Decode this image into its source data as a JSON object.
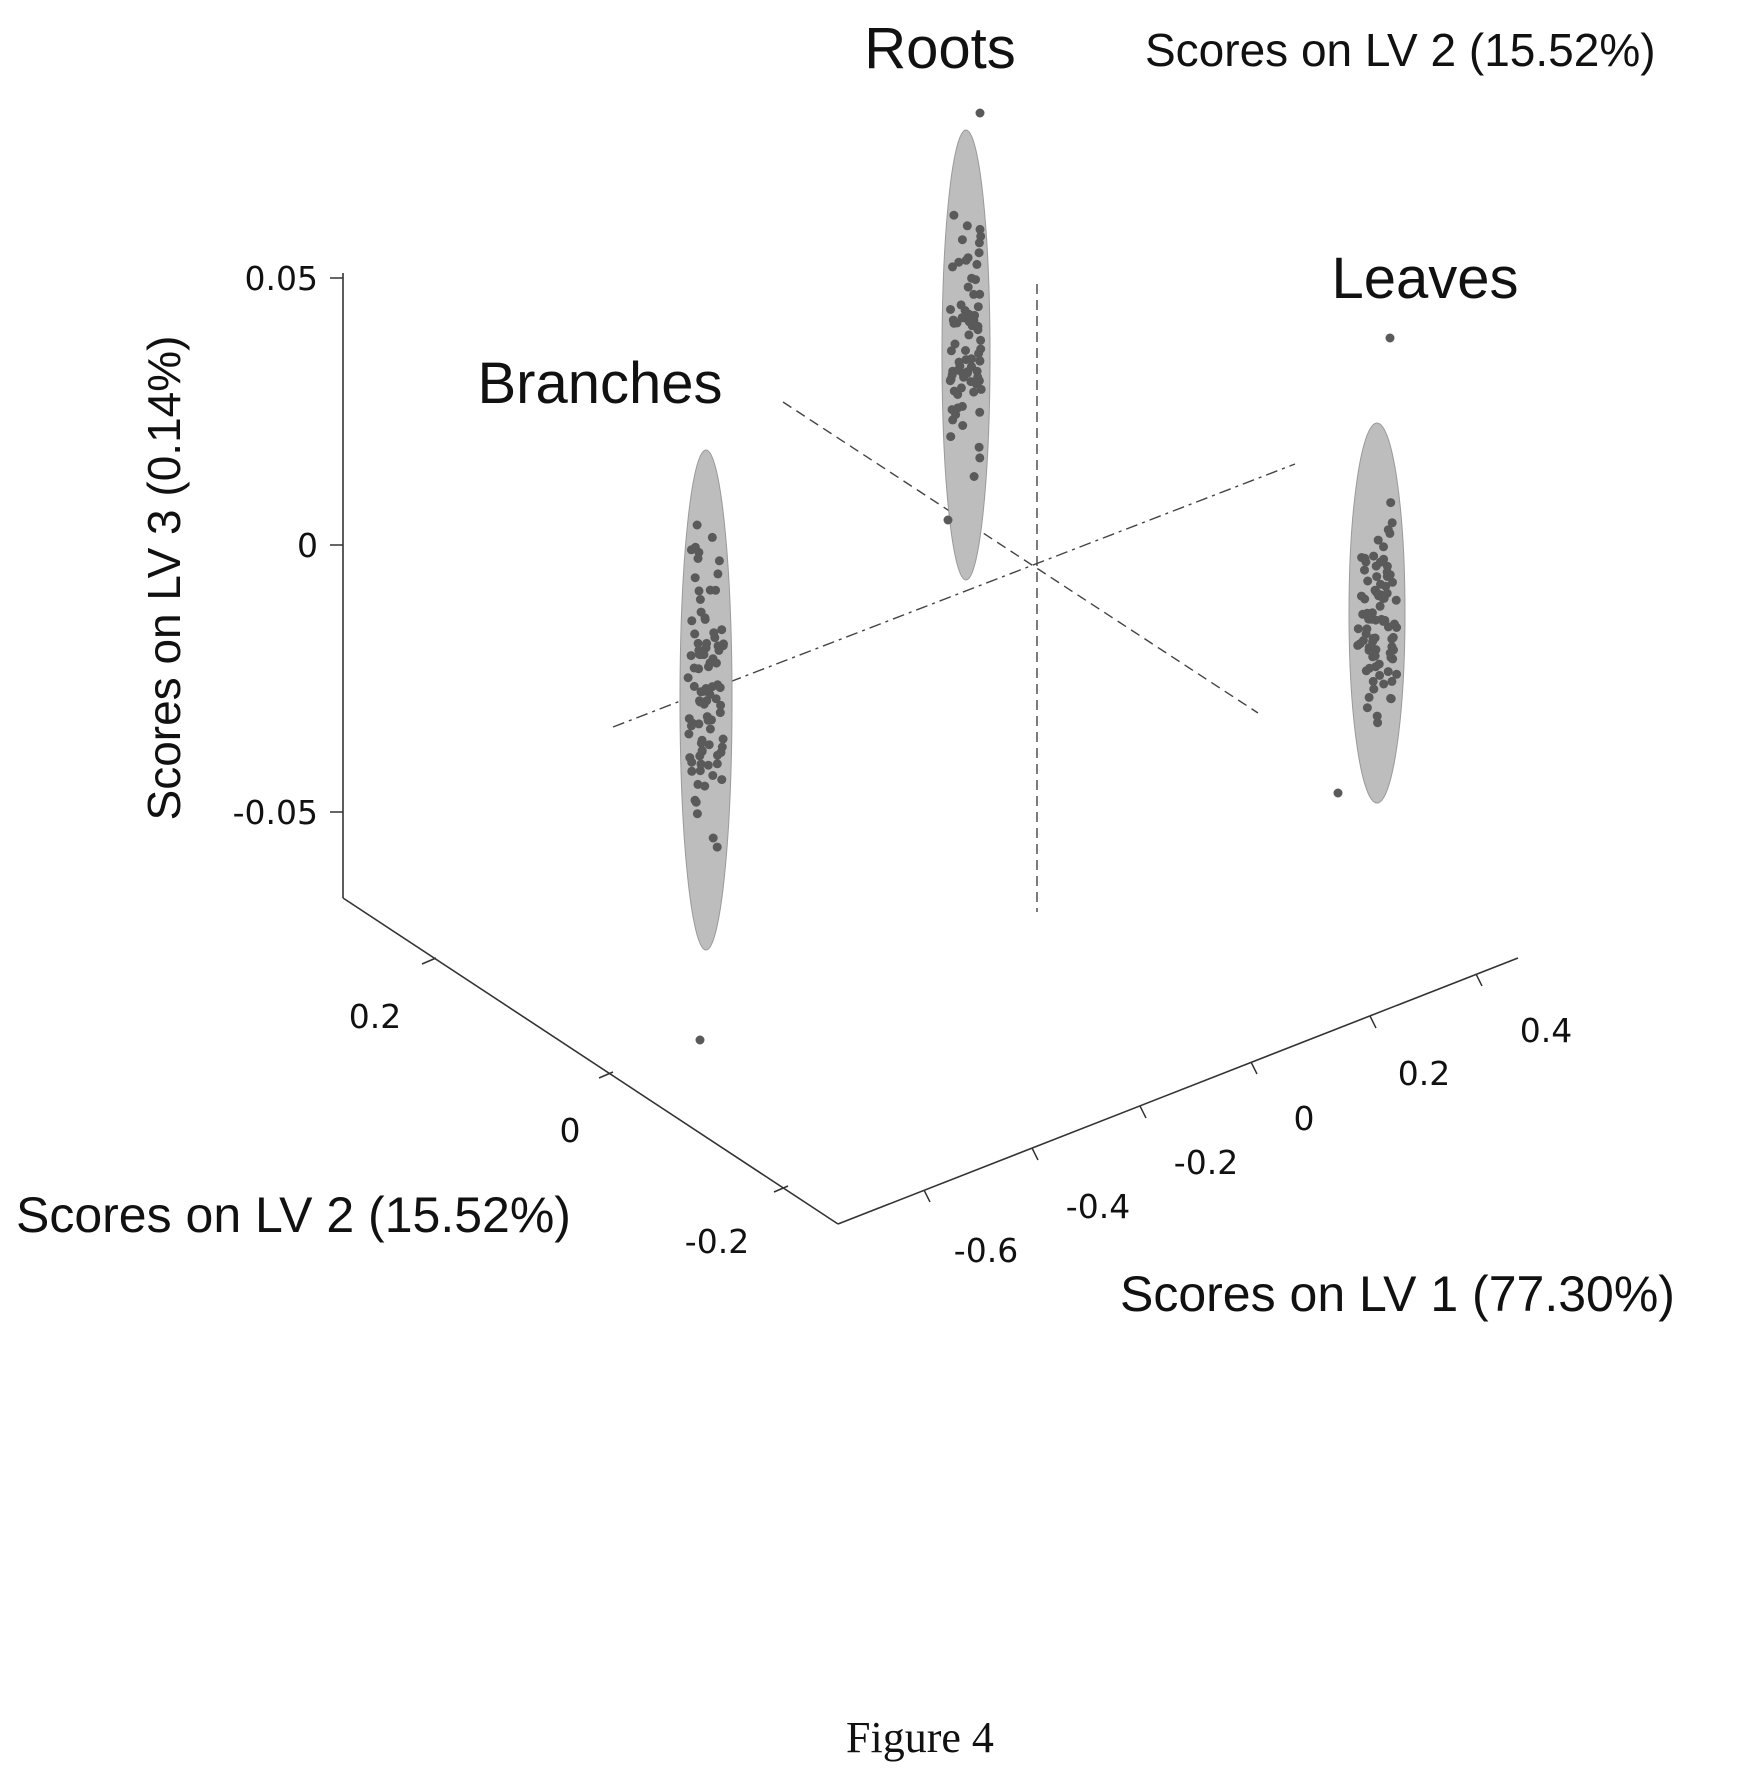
{
  "chart_data": {
    "type": "scatter",
    "projection": "3d",
    "x_axis": {
      "label": "Scores on LV 1 (77.30%)",
      "ticks": [
        "-0.6",
        "-0.4",
        "-0.2",
        "0",
        "0.2",
        "0.4"
      ]
    },
    "y_axis": {
      "label": "Scores on LV 2 (15.52%)",
      "ticks": [
        "0.2",
        "0",
        "-0.2"
      ]
    },
    "z_axis": {
      "label": "Scores on LV 3 (0.14%)",
      "ticks": [
        "0.05",
        "0",
        "-0.05"
      ]
    },
    "top_right_label": "Scores on LV 2 (15.52%)",
    "groups": [
      {
        "name": "Roots",
        "confidence_ellipse": true
      },
      {
        "name": "Branches",
        "confidence_ellipse": true
      },
      {
        "name": "Leaves",
        "confidence_ellipse": true
      }
    ],
    "grid": false,
    "legend": "none"
  },
  "caption": "Figure 4"
}
